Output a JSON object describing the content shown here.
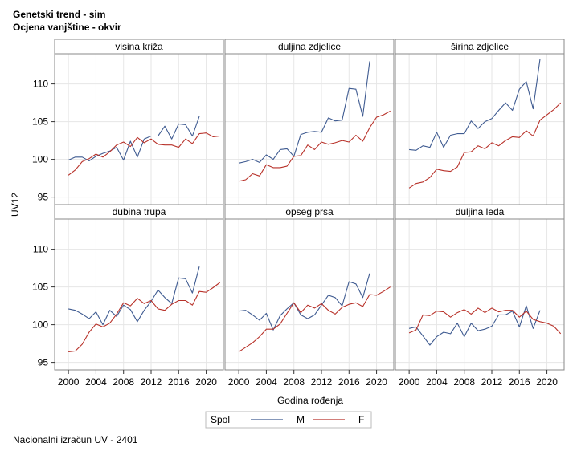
{
  "title": "Genetski trend - sim",
  "subtitle": "Ocjena vanjštine - okvir",
  "footnote": "Nacionalni izračun UV - 2401",
  "colors": {
    "M": "#3f5b91",
    "F": "#b8322a",
    "grid": "#e6e6e6",
    "frame": "#888888",
    "header_bg": "#ffffff"
  },
  "chart_data": {
    "type": "line",
    "ylabel": "UV12",
    "xlabel": "Godina rođenja",
    "xlim": [
      1998,
      2022.5
    ],
    "ylim": [
      94,
      114
    ],
    "x_ticks": [
      2000,
      2004,
      2008,
      2012,
      2016,
      2020
    ],
    "y_ticks": [
      95,
      100,
      105,
      110
    ],
    "legend": {
      "title": "Spol",
      "position": "bottom",
      "entries": [
        {
          "key": "M",
          "label": "M"
        },
        {
          "key": "F",
          "label": "F"
        }
      ]
    },
    "panels": [
      {
        "title": "visina križa",
        "M": {
          "x": [
            2000,
            2001,
            2002,
            2003,
            2004,
            2005,
            2006,
            2007,
            2008,
            2009,
            2010,
            2011,
            2012,
            2013,
            2014,
            2015,
            2016,
            2017,
            2018,
            2019
          ],
          "y": [
            99.9,
            100.3,
            100.3,
            99.8,
            100.4,
            100.8,
            101.1,
            101.6,
            99.9,
            102.4,
            100.3,
            102.7,
            103.1,
            103.1,
            104.4,
            102.7,
            104.7,
            104.6,
            103.1,
            105.7
          ]
        },
        "F": {
          "x": [
            2000,
            2001,
            2002,
            2003,
            2004,
            2005,
            2006,
            2007,
            2008,
            2009,
            2010,
            2011,
            2012,
            2013,
            2014,
            2015,
            2016,
            2017,
            2018,
            2019,
            2020,
            2021,
            2022
          ],
          "y": [
            97.9,
            98.6,
            99.7,
            100.1,
            100.7,
            100.3,
            101.0,
            101.9,
            102.3,
            101.7,
            102.9,
            102.2,
            102.7,
            102.0,
            101.9,
            101.9,
            101.6,
            102.7,
            102.1,
            103.4,
            103.5,
            103.0,
            103.1
          ]
        }
      },
      {
        "title": "duljina zdjelice",
        "M": {
          "x": [
            2000,
            2001,
            2002,
            2003,
            2004,
            2005,
            2006,
            2007,
            2008,
            2009,
            2010,
            2011,
            2012,
            2013,
            2014,
            2015,
            2016,
            2017,
            2018,
            2019
          ],
          "y": [
            99.5,
            99.7,
            100.0,
            99.6,
            100.6,
            100.0,
            101.3,
            101.4,
            100.4,
            103.3,
            103.6,
            103.7,
            103.6,
            105.5,
            105.1,
            105.2,
            109.4,
            109.3,
            105.7,
            113.0
          ]
        },
        "F": {
          "x": [
            2000,
            2001,
            2002,
            2003,
            2004,
            2005,
            2006,
            2007,
            2008,
            2009,
            2010,
            2011,
            2012,
            2013,
            2014,
            2015,
            2016,
            2017,
            2018,
            2019,
            2020,
            2021,
            2022
          ],
          "y": [
            97.1,
            97.3,
            98.1,
            97.8,
            99.3,
            98.9,
            98.9,
            99.1,
            100.4,
            100.5,
            101.9,
            101.3,
            102.3,
            102.0,
            102.2,
            102.5,
            102.3,
            103.2,
            102.4,
            104.2,
            105.6,
            105.9,
            106.4
          ]
        }
      },
      {
        "title": "širina zdjelice",
        "M": {
          "x": [
            2000,
            2001,
            2002,
            2003,
            2004,
            2005,
            2006,
            2007,
            2008,
            2009,
            2010,
            2011,
            2012,
            2013,
            2014,
            2015,
            2016,
            2017,
            2018,
            2019
          ],
          "y": [
            101.3,
            101.2,
            101.8,
            101.6,
            103.6,
            101.6,
            103.2,
            103.4,
            103.4,
            105.1,
            104.1,
            105.0,
            105.4,
            106.5,
            107.5,
            106.5,
            109.3,
            110.3,
            106.7,
            113.3
          ]
        },
        "F": {
          "x": [
            2000,
            2001,
            2002,
            2003,
            2004,
            2005,
            2006,
            2007,
            2008,
            2009,
            2010,
            2011,
            2012,
            2013,
            2014,
            2015,
            2016,
            2017,
            2018,
            2019,
            2020,
            2021,
            2022
          ],
          "y": [
            96.2,
            96.8,
            97.0,
            97.6,
            98.7,
            98.5,
            98.4,
            99.0,
            100.9,
            101.0,
            101.8,
            101.4,
            102.2,
            101.8,
            102.5,
            103.0,
            102.9,
            103.8,
            103.1,
            105.2,
            105.9,
            106.6,
            107.5
          ]
        }
      },
      {
        "title": "dubina trupa",
        "M": {
          "x": [
            2000,
            2001,
            2002,
            2003,
            2004,
            2005,
            2006,
            2007,
            2008,
            2009,
            2010,
            2011,
            2012,
            2013,
            2014,
            2015,
            2016,
            2017,
            2018,
            2019
          ],
          "y": [
            102.1,
            101.9,
            101.4,
            100.8,
            101.7,
            100.0,
            101.9,
            101.1,
            102.6,
            102.0,
            100.4,
            101.9,
            103.1,
            104.6,
            103.6,
            102.8,
            106.2,
            106.1,
            104.2,
            107.7
          ]
        },
        "F": {
          "x": [
            2000,
            2001,
            2002,
            2003,
            2004,
            2005,
            2006,
            2007,
            2008,
            2009,
            2010,
            2011,
            2012,
            2013,
            2014,
            2015,
            2016,
            2017,
            2018,
            2019,
            2020,
            2021,
            2022
          ],
          "y": [
            96.4,
            96.5,
            97.4,
            99.0,
            100.1,
            99.7,
            100.2,
            101.4,
            102.9,
            102.5,
            103.5,
            102.8,
            103.2,
            102.1,
            101.9,
            102.7,
            103.2,
            103.2,
            102.6,
            104.4,
            104.3,
            104.9,
            105.6
          ]
        }
      },
      {
        "title": "opseg prsa",
        "M": {
          "x": [
            2000,
            2001,
            2002,
            2003,
            2004,
            2005,
            2006,
            2007,
            2008,
            2009,
            2010,
            2011,
            2012,
            2013,
            2014,
            2015,
            2016,
            2017,
            2018,
            2019
          ],
          "y": [
            101.8,
            101.9,
            101.3,
            100.6,
            101.5,
            99.3,
            101.2,
            102.1,
            102.9,
            101.3,
            100.8,
            101.3,
            102.6,
            103.9,
            103.6,
            102.5,
            105.7,
            105.4,
            103.6,
            106.8
          ]
        },
        "F": {
          "x": [
            2000,
            2001,
            2002,
            2003,
            2004,
            2005,
            2006,
            2007,
            2008,
            2009,
            2010,
            2011,
            2012,
            2013,
            2014,
            2015,
            2016,
            2017,
            2018,
            2019,
            2020,
            2021,
            2022
          ],
          "y": [
            96.4,
            97.0,
            97.6,
            98.4,
            99.4,
            99.4,
            100.1,
            101.5,
            102.9,
            101.6,
            102.6,
            102.2,
            102.8,
            101.9,
            101.4,
            102.3,
            102.7,
            102.9,
            102.4,
            104.0,
            103.9,
            104.4,
            105.0
          ]
        }
      },
      {
        "title": "duljina leđa",
        "M": {
          "x": [
            2000,
            2001,
            2002,
            2003,
            2004,
            2005,
            2006,
            2007,
            2008,
            2009,
            2010,
            2011,
            2012,
            2013,
            2014,
            2015,
            2016,
            2017,
            2018,
            2019
          ],
          "y": [
            99.5,
            99.7,
            98.5,
            97.3,
            98.4,
            99.0,
            98.8,
            100.2,
            98.4,
            100.2,
            99.2,
            99.4,
            99.8,
            101.3,
            101.3,
            101.8,
            99.7,
            102.5,
            99.5,
            101.9
          ]
        },
        "F": {
          "x": [
            2000,
            2001,
            2002,
            2003,
            2004,
            2005,
            2006,
            2007,
            2008,
            2009,
            2010,
            2011,
            2012,
            2013,
            2014,
            2015,
            2016,
            2017,
            2018,
            2019,
            2020,
            2021,
            2022
          ],
          "y": [
            98.9,
            99.3,
            101.3,
            101.2,
            101.8,
            101.7,
            101.0,
            101.6,
            102.0,
            101.4,
            102.2,
            101.6,
            102.2,
            101.7,
            101.9,
            101.9,
            101.0,
            101.8,
            100.7,
            100.4,
            100.2,
            99.8,
            98.8
          ]
        }
      }
    ]
  }
}
